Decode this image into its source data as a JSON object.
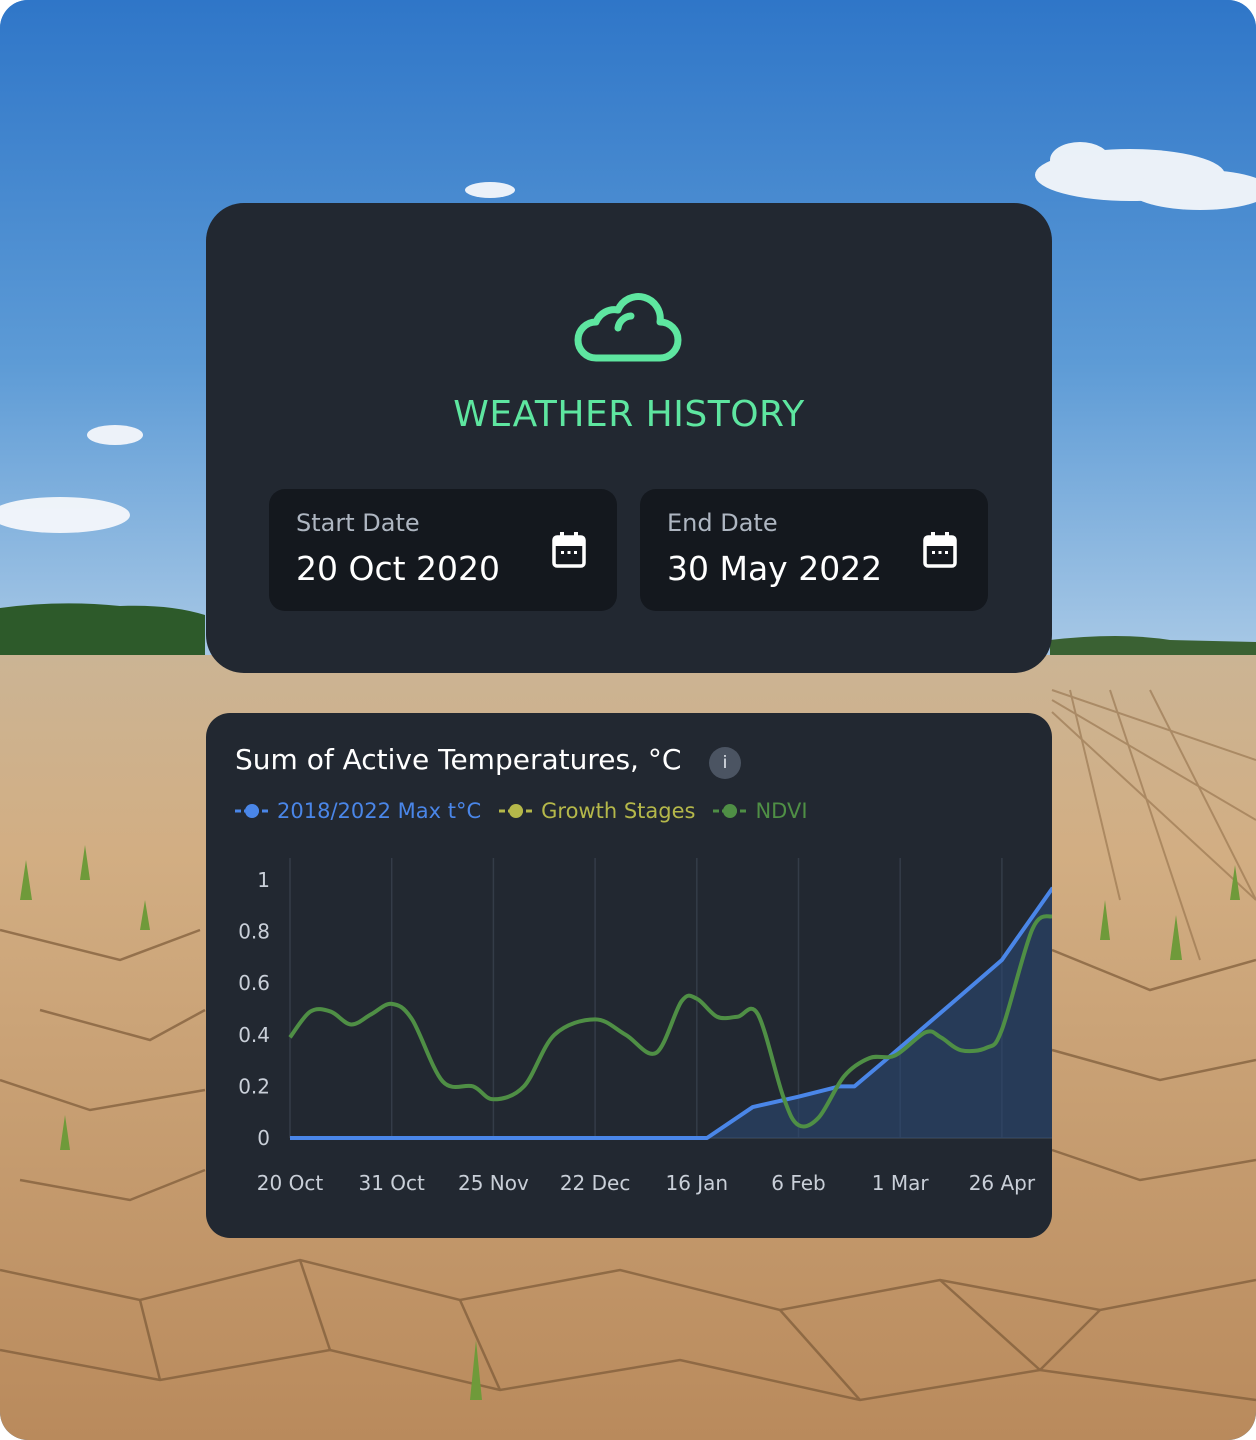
{
  "colors": {
    "accent_green": "#5ee6a0",
    "card_bg": "#222831",
    "field_bg": "#14181e",
    "max_temp_line": "#4a86e8",
    "growth_stages": "#b5b84a",
    "ndvi": "#4f8f45"
  },
  "weather": {
    "icon": "cloud-icon",
    "title": "WEATHER HISTORY",
    "start": {
      "label": "Start Date",
      "value": "20 Oct 2020",
      "icon": "calendar-icon"
    },
    "end": {
      "label": "End Date",
      "value": "30 May 2022",
      "icon": "calendar-icon"
    }
  },
  "chart_card": {
    "title": "Sum of Active Temperatures, °C",
    "info_label": "i"
  },
  "chart_data": {
    "type": "line",
    "title": "Sum of Active Temperatures, °C",
    "categories": [
      "20 Oct",
      "31 Oct",
      "25 Nov",
      "22 Dec",
      "16 Jan",
      "6 Feb",
      "1 Mar",
      "26 Apr"
    ],
    "yticks": [
      "0",
      "0.2",
      "0.4",
      "0.6",
      "0.8",
      "1"
    ],
    "ylim": [
      0,
      1
    ],
    "grid": "vertical",
    "legend_position": "top-left",
    "series": [
      {
        "name": "2018/2022 Max t°C",
        "color": "#4a86e8",
        "fill": true,
        "x": [
          0,
          4.1,
          4.55,
          5.0,
          5.4,
          5.55,
          5.85,
          6.5,
          7.0,
          7.5
        ],
        "values": [
          0,
          0,
          0.12,
          0.16,
          0.2,
          0.2,
          0.3,
          0.52,
          0.69,
          0.97
        ]
      },
      {
        "name": "Growth Stages",
        "color": "#b5b84a",
        "x": [],
        "values": []
      },
      {
        "name": "NDVI",
        "color": "#4f8f45",
        "x": [
          0,
          0.2,
          0.4,
          0.6,
          0.8,
          1.0,
          1.2,
          1.5,
          1.8,
          2.0,
          2.3,
          2.6,
          3.0,
          3.3,
          3.6,
          3.85,
          4.0,
          4.2,
          4.4,
          4.6,
          4.85,
          5.0,
          5.2,
          5.45,
          5.7,
          5.95,
          6.25,
          6.4,
          6.6,
          6.85,
          7.0,
          7.3,
          7.5
        ],
        "values": [
          0.39,
          0.49,
          0.49,
          0.44,
          0.48,
          0.52,
          0.46,
          0.22,
          0.2,
          0.15,
          0.2,
          0.4,
          0.46,
          0.4,
          0.33,
          0.53,
          0.54,
          0.47,
          0.47,
          0.48,
          0.16,
          0.05,
          0.08,
          0.24,
          0.31,
          0.32,
          0.41,
          0.39,
          0.34,
          0.35,
          0.42,
          0.81,
          0.86
        ]
      }
    ]
  }
}
